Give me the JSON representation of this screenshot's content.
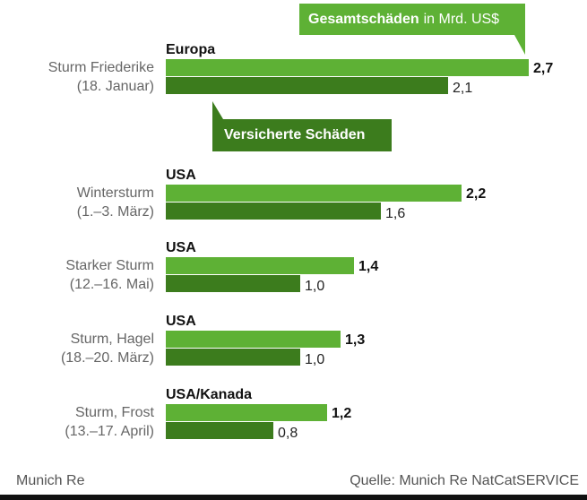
{
  "callouts": {
    "total_bold": "Gesamtschäden",
    "total_rest": "in Mrd. US$",
    "insured": "Versicherte Schäden"
  },
  "colors": {
    "total": "#5eb135",
    "insured": "#3c7c1d"
  },
  "chart_data": {
    "type": "bar",
    "orientation": "horizontal",
    "categories": [
      {
        "region": "Europa",
        "name": "Sturm Friederike",
        "date": "(18. Januar)"
      },
      {
        "region": "USA",
        "name": "Wintersturm",
        "date": "(1.–3. März)"
      },
      {
        "region": "USA",
        "name": "Starker Sturm",
        "date": "(12.–16. Mai)"
      },
      {
        "region": "USA",
        "name": "Sturm, Hagel",
        "date": "(18.–20. März)"
      },
      {
        "region": "USA/Kanada",
        "name": "Sturm, Frost",
        "date": "(13.–17. April)"
      }
    ],
    "series": [
      {
        "name": "Gesamtschäden",
        "values": [
          2.7,
          2.2,
          1.4,
          1.3,
          1.2
        ],
        "labels": [
          "2,7",
          "2,2",
          "1,4",
          "1,3",
          "1,2"
        ]
      },
      {
        "name": "Versicherte Schäden",
        "values": [
          2.1,
          1.6,
          1.0,
          1.0,
          0.8
        ],
        "labels": [
          "2,1",
          "1,6",
          "1,0",
          "1,0",
          "0,8"
        ]
      }
    ],
    "unit": "Mrd. US$",
    "xlim": [
      0,
      2.7
    ],
    "grid": false
  },
  "footer": {
    "left": "Munich Re",
    "right": "Quelle: Munich Re NatCatSERVICE"
  }
}
